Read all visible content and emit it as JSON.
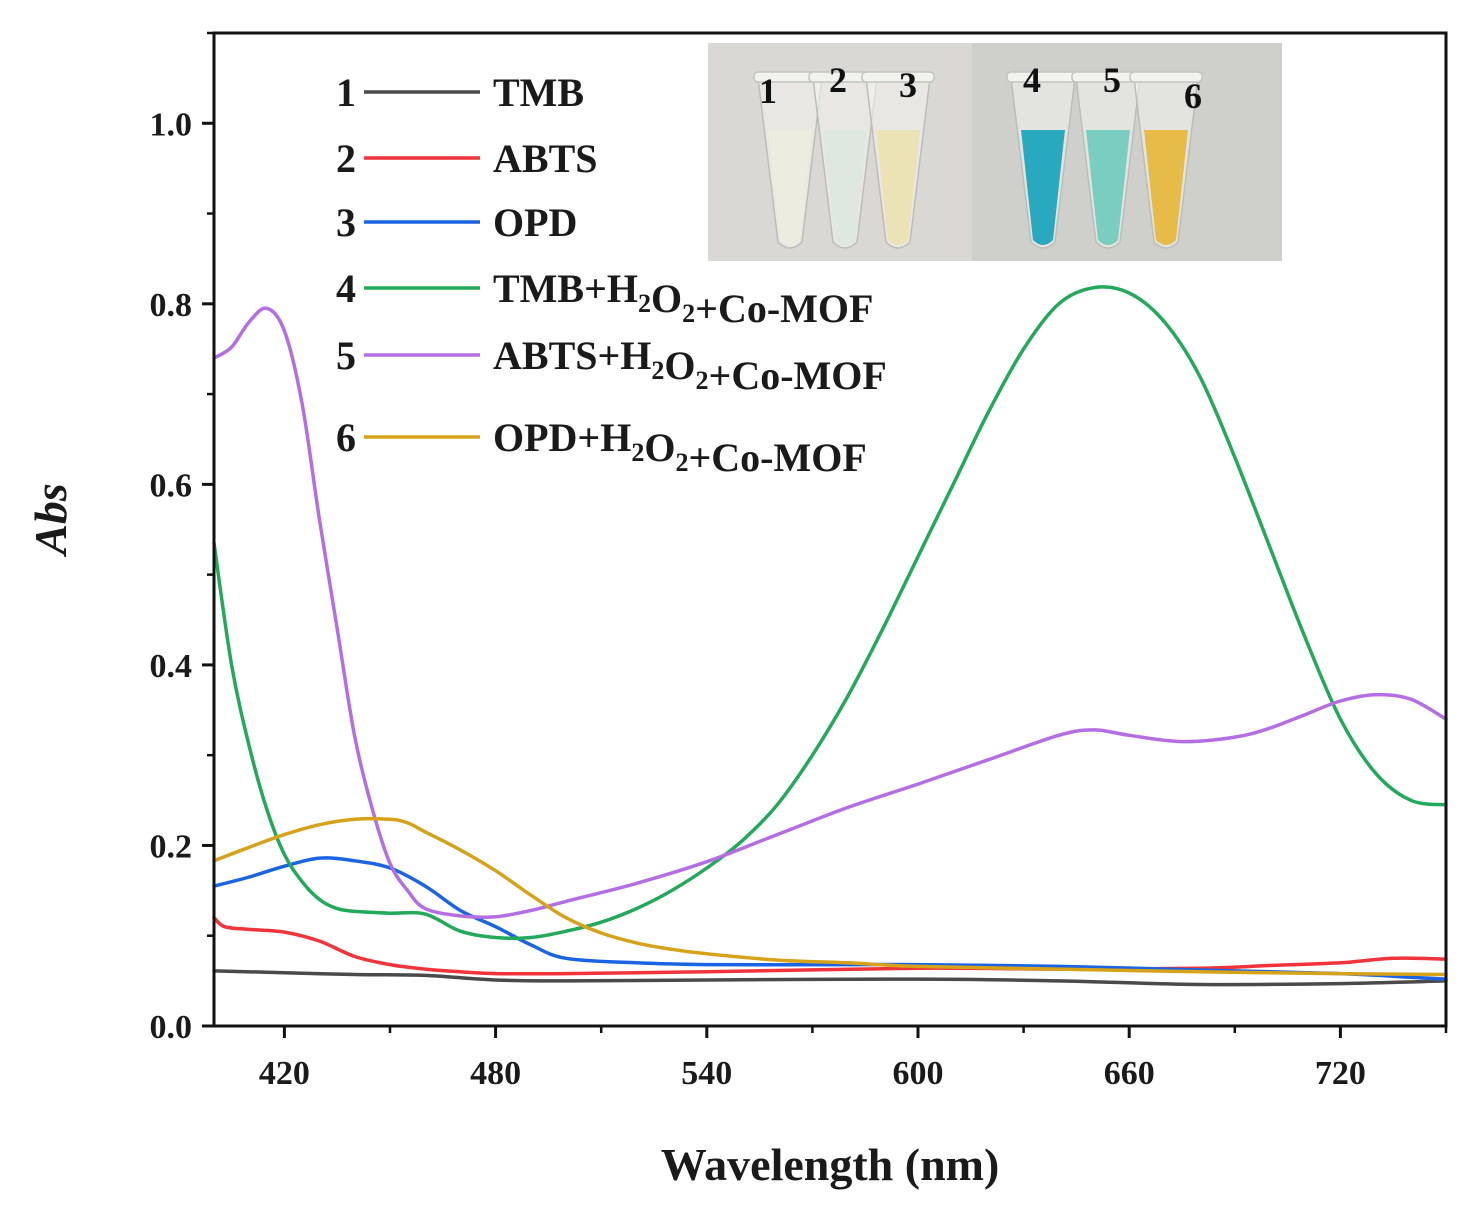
{
  "chart_data": {
    "type": "line",
    "xlabel": "Wavelength (nm)",
    "ylabel": "Abs",
    "xlim": [
      400,
      750
    ],
    "ylim": [
      0,
      1.1
    ],
    "xticks": [
      420,
      480,
      540,
      600,
      660,
      720
    ],
    "xtick_labels": [
      "420",
      "480",
      "540",
      "600",
      "660",
      "720"
    ],
    "yticks": [
      0.0,
      0.2,
      0.4,
      0.6,
      0.8,
      1.0
    ],
    "ytick_labels": [
      "0.0",
      "0.2",
      "0.4",
      "0.6",
      "0.8",
      "1.0"
    ],
    "legend_position": "top-left",
    "series": [
      {
        "num": "1",
        "name": "TMB",
        "color": "#4a4a4a",
        "legend": [
          {
            "t": "TMB"
          }
        ],
        "points": [
          [
            400,
            0.061
          ],
          [
            420,
            0.059
          ],
          [
            440,
            0.057
          ],
          [
            460,
            0.056
          ],
          [
            480,
            0.051
          ],
          [
            500,
            0.05
          ],
          [
            540,
            0.051
          ],
          [
            600,
            0.052
          ],
          [
            640,
            0.05
          ],
          [
            680,
            0.046
          ],
          [
            720,
            0.047
          ],
          [
            750,
            0.05
          ]
        ]
      },
      {
        "num": "2",
        "name": "ABTS",
        "color": "#f0343c",
        "legend": [
          {
            "t": "ABTS"
          }
        ],
        "points": [
          [
            400,
            0.12
          ],
          [
            403,
            0.11
          ],
          [
            410,
            0.107
          ],
          [
            420,
            0.104
          ],
          [
            430,
            0.094
          ],
          [
            440,
            0.077
          ],
          [
            450,
            0.068
          ],
          [
            460,
            0.063
          ],
          [
            470,
            0.06
          ],
          [
            480,
            0.058
          ],
          [
            500,
            0.058
          ],
          [
            540,
            0.06
          ],
          [
            600,
            0.064
          ],
          [
            640,
            0.063
          ],
          [
            680,
            0.064
          ],
          [
            700,
            0.067
          ],
          [
            720,
            0.07
          ],
          [
            735,
            0.075
          ],
          [
            750,
            0.074
          ]
        ]
      },
      {
        "num": "3",
        "name": "OPD",
        "color": "#1a64e4",
        "legend": [
          {
            "t": "OPD"
          }
        ],
        "points": [
          [
            400,
            0.155
          ],
          [
            410,
            0.165
          ],
          [
            420,
            0.177
          ],
          [
            430,
            0.186
          ],
          [
            440,
            0.183
          ],
          [
            450,
            0.175
          ],
          [
            460,
            0.155
          ],
          [
            470,
            0.128
          ],
          [
            480,
            0.11
          ],
          [
            490,
            0.09
          ],
          [
            500,
            0.075
          ],
          [
            520,
            0.07
          ],
          [
            540,
            0.068
          ],
          [
            580,
            0.068
          ],
          [
            600,
            0.068
          ],
          [
            640,
            0.066
          ],
          [
            680,
            0.062
          ],
          [
            720,
            0.058
          ],
          [
            740,
            0.054
          ],
          [
            750,
            0.052
          ]
        ]
      },
      {
        "num": "4",
        "name": "TMB+H2O2+Co-MOF",
        "color": "#22aa5a",
        "legend": [
          {
            "t": "TMB+H"
          },
          {
            "t": "2",
            "sub": true
          },
          {
            "t": "O"
          },
          {
            "t": "2",
            "sub": true
          },
          {
            "t": "+Co-MOF"
          }
        ],
        "points": [
          [
            400,
            0.535
          ],
          [
            405,
            0.4
          ],
          [
            410,
            0.31
          ],
          [
            415,
            0.24
          ],
          [
            420,
            0.19
          ],
          [
            425,
            0.16
          ],
          [
            430,
            0.14
          ],
          [
            435,
            0.13
          ],
          [
            440,
            0.127
          ],
          [
            450,
            0.125
          ],
          [
            460,
            0.124
          ],
          [
            470,
            0.105
          ],
          [
            480,
            0.098
          ],
          [
            490,
            0.098
          ],
          [
            500,
            0.105
          ],
          [
            510,
            0.115
          ],
          [
            520,
            0.13
          ],
          [
            530,
            0.15
          ],
          [
            540,
            0.175
          ],
          [
            550,
            0.205
          ],
          [
            560,
            0.245
          ],
          [
            570,
            0.3
          ],
          [
            580,
            0.365
          ],
          [
            590,
            0.44
          ],
          [
            600,
            0.52
          ],
          [
            610,
            0.6
          ],
          [
            620,
            0.68
          ],
          [
            630,
            0.75
          ],
          [
            640,
            0.8
          ],
          [
            650,
            0.818
          ],
          [
            660,
            0.812
          ],
          [
            670,
            0.78
          ],
          [
            680,
            0.72
          ],
          [
            690,
            0.63
          ],
          [
            700,
            0.53
          ],
          [
            710,
            0.43
          ],
          [
            720,
            0.34
          ],
          [
            730,
            0.28
          ],
          [
            740,
            0.25
          ],
          [
            750,
            0.245
          ]
        ]
      },
      {
        "num": "5",
        "name": "ABTS+H2O2+Co-MOF",
        "color": "#b46ee4",
        "legend": [
          {
            "t": "ABTS+H"
          },
          {
            "t": "2",
            "sub": true
          },
          {
            "t": "O"
          },
          {
            "t": "2",
            "sub": true
          },
          {
            "t": "+Co-MOF"
          }
        ],
        "points": [
          [
            400,
            0.74
          ],
          [
            405,
            0.752
          ],
          [
            410,
            0.78
          ],
          [
            415,
            0.795
          ],
          [
            420,
            0.77
          ],
          [
            425,
            0.69
          ],
          [
            430,
            0.56
          ],
          [
            435,
            0.44
          ],
          [
            440,
            0.32
          ],
          [
            445,
            0.24
          ],
          [
            450,
            0.18
          ],
          [
            455,
            0.15
          ],
          [
            460,
            0.13
          ],
          [
            470,
            0.122
          ],
          [
            480,
            0.121
          ],
          [
            490,
            0.128
          ],
          [
            500,
            0.138
          ],
          [
            520,
            0.158
          ],
          [
            540,
            0.182
          ],
          [
            560,
            0.212
          ],
          [
            580,
            0.242
          ],
          [
            600,
            0.268
          ],
          [
            620,
            0.295
          ],
          [
            640,
            0.322
          ],
          [
            650,
            0.328
          ],
          [
            660,
            0.322
          ],
          [
            675,
            0.315
          ],
          [
            690,
            0.32
          ],
          [
            700,
            0.33
          ],
          [
            710,
            0.345
          ],
          [
            720,
            0.36
          ],
          [
            730,
            0.367
          ],
          [
            740,
            0.362
          ],
          [
            750,
            0.34
          ]
        ]
      },
      {
        "num": "6",
        "name": "OPD+H2O2+Co-MOF",
        "color": "#d6a21a",
        "legend": [
          {
            "t": "OPD+H"
          },
          {
            "t": "2",
            "sub": true
          },
          {
            "t": "O"
          },
          {
            "t": "2",
            "sub": true
          },
          {
            "t": "+Co-MOF"
          }
        ],
        "points": [
          [
            400,
            0.183
          ],
          [
            410,
            0.198
          ],
          [
            420,
            0.212
          ],
          [
            430,
            0.223
          ],
          [
            440,
            0.229
          ],
          [
            450,
            0.229
          ],
          [
            455,
            0.225
          ],
          [
            460,
            0.215
          ],
          [
            470,
            0.195
          ],
          [
            480,
            0.172
          ],
          [
            490,
            0.145
          ],
          [
            500,
            0.12
          ],
          [
            510,
            0.103
          ],
          [
            520,
            0.092
          ],
          [
            530,
            0.085
          ],
          [
            540,
            0.08
          ],
          [
            560,
            0.073
          ],
          [
            580,
            0.07
          ],
          [
            600,
            0.066
          ],
          [
            640,
            0.063
          ],
          [
            680,
            0.06
          ],
          [
            720,
            0.058
          ],
          [
            750,
            0.057
          ]
        ]
      }
    ]
  },
  "inset": {
    "tubes": [
      {
        "label": "1",
        "color": "#ececdf"
      },
      {
        "label": "2",
        "color": "#dde7df"
      },
      {
        "label": "3",
        "color": "#ebe2b2"
      },
      {
        "label": "4",
        "color": "#1ea5bd"
      },
      {
        "label": "5",
        "color": "#74ccbe"
      },
      {
        "label": "6",
        "color": "#e6b83f"
      }
    ]
  }
}
